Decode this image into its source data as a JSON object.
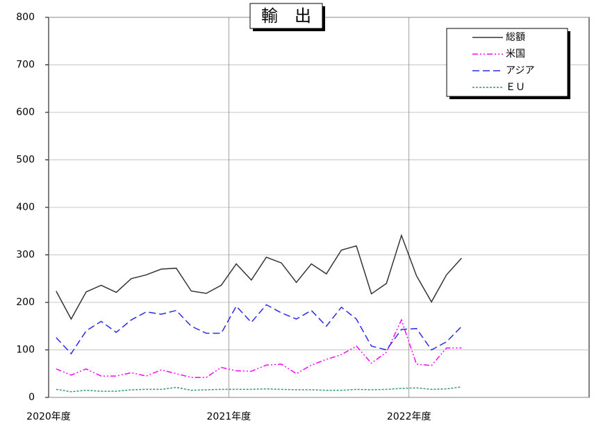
{
  "chart_data": {
    "type": "line",
    "title": "輸　出",
    "categories": [
      "2020年度",
      null,
      null,
      null,
      null,
      null,
      null,
      null,
      null,
      null,
      null,
      null,
      "2021年度",
      null,
      null,
      null,
      null,
      null,
      null,
      null,
      null,
      null,
      null,
      null,
      "2022年度",
      null,
      null,
      null,
      null,
      null,
      null,
      null,
      null,
      null,
      null,
      null
    ],
    "series": [
      {
        "name": "総額",
        "color": "#333333",
        "line_style": "solid",
        "values": [
          224,
          165,
          222,
          236,
          221,
          250,
          258,
          270,
          272,
          224,
          219,
          236,
          281,
          247,
          295,
          283,
          242,
          281,
          260,
          310,
          319,
          218,
          240,
          341,
          256,
          201,
          258,
          293,
          null,
          null,
          null,
          null,
          null,
          null,
          null,
          null
        ]
      },
      {
        "name": "米国",
        "color": "#ff00ff",
        "line_style": "dashdotdot",
        "values": [
          60,
          47,
          60,
          45,
          45,
          52,
          45,
          58,
          50,
          42,
          42,
          63,
          56,
          55,
          68,
          70,
          50,
          68,
          80,
          90,
          108,
          72,
          95,
          163,
          70,
          67,
          104,
          104,
          null,
          null,
          null,
          null,
          null,
          null,
          null,
          null
        ]
      },
      {
        "name": "アジア",
        "color": "#2a2ae6",
        "line_style": "dashed",
        "values": [
          126,
          92,
          140,
          160,
          137,
          163,
          180,
          175,
          183,
          150,
          135,
          135,
          192,
          158,
          195,
          178,
          165,
          183,
          150,
          190,
          165,
          108,
          100,
          143,
          145,
          100,
          117,
          149,
          null,
          null,
          null,
          null,
          null,
          null,
          null,
          null
        ]
      },
      {
        "name": "ＥＵ",
        "color": "#339966",
        "line_style": "dotted",
        "values": [
          17,
          12,
          15,
          13,
          13,
          16,
          17,
          17,
          21,
          15,
          16,
          17,
          17,
          17,
          18,
          17,
          16,
          16,
          15,
          15,
          17,
          16,
          17,
          19,
          20,
          17,
          18,
          22,
          null,
          null,
          null,
          null,
          null,
          null,
          null,
          null
        ]
      }
    ],
    "ylim": [
      0,
      800
    ],
    "yticks": [
      0,
      100,
      200,
      300,
      400,
      500,
      600,
      700,
      800
    ],
    "grid": true,
    "legend": "top-right"
  }
}
